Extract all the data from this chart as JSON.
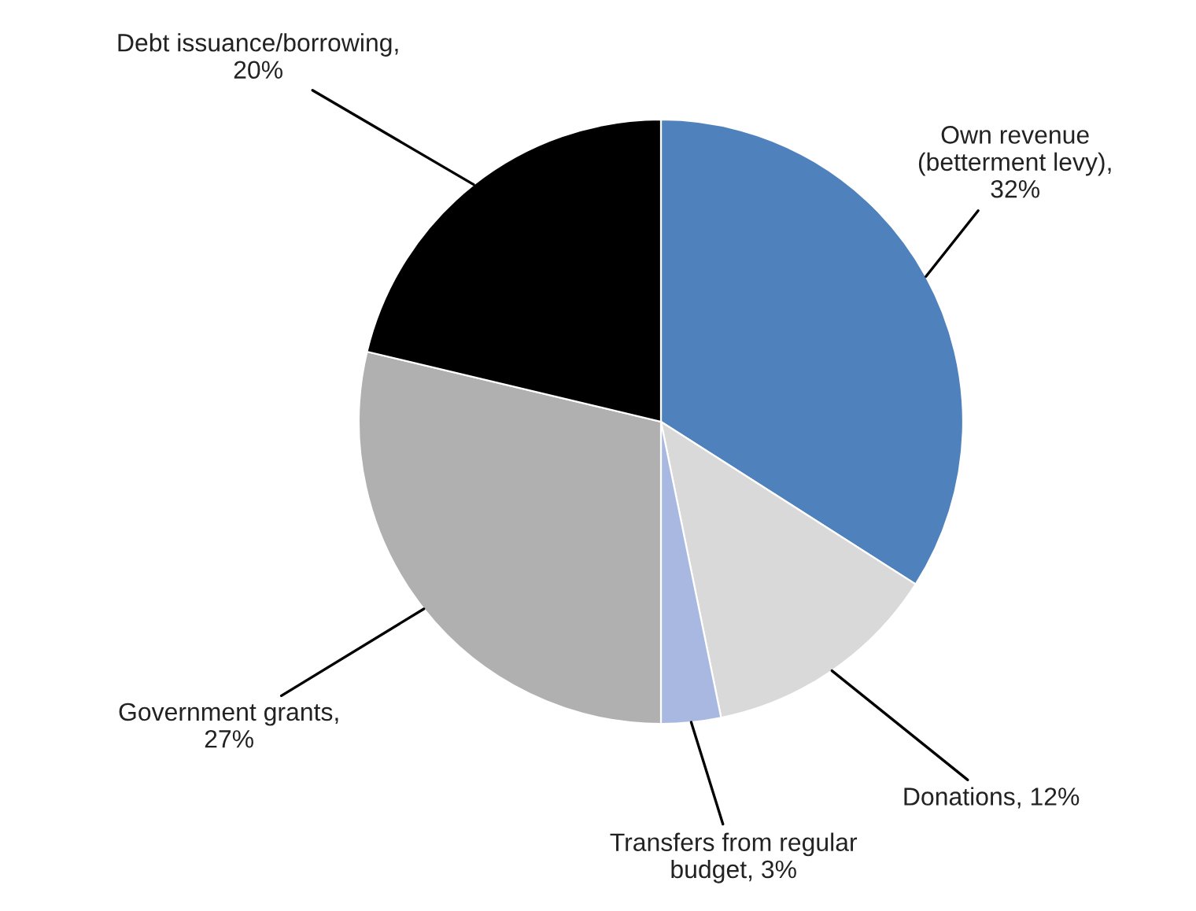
{
  "chart_data": {
    "type": "pie",
    "categories": [
      "Own revenue\n(betterment levy),\n32%",
      "Donations, 12%",
      "Transfers from regular\nbudget, 3%",
      "Government grants,\n27%",
      "Debt issuance/borrowing,\n20%"
    ],
    "values": [
      32,
      12,
      3,
      27,
      20
    ],
    "colors": [
      "#4f81bd",
      "#d9d9d9",
      "#a9b8e0",
      "#b0b0b0",
      "#000000"
    ],
    "legend": false
  }
}
